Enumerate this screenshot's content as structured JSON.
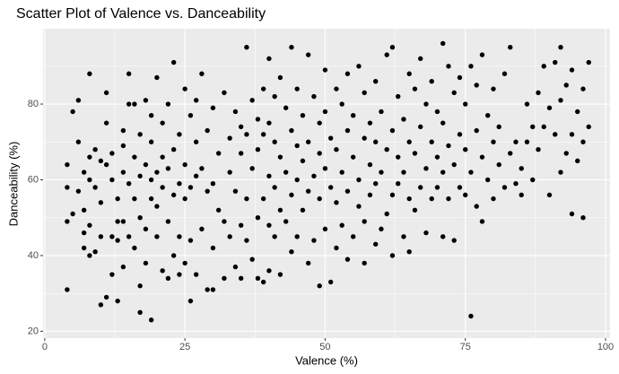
{
  "chart_data": {
    "type": "scatter",
    "title": "Scatter Plot of Valence vs. Danceability",
    "x_label": "Valence (%)",
    "y_label": "Danceability (%)",
    "xlim": [
      -0.3,
      100.8
    ],
    "ylim": [
      18.2,
      99.9
    ],
    "xticks": [
      0,
      25,
      50,
      75,
      100
    ],
    "yticks": [
      20,
      40,
      60,
      80
    ],
    "x_minor": [
      12.5,
      37.5,
      62.5,
      87.5
    ],
    "y_minor": [
      30,
      50,
      70,
      90
    ],
    "grid": true,
    "color": "#000000",
    "x": [
      4,
      4,
      4,
      4,
      5,
      5,
      6,
      6,
      6,
      7,
      7,
      7,
      7,
      8,
      8,
      8,
      8,
      8,
      9,
      9,
      9,
      10,
      10,
      10,
      10,
      11,
      11,
      11,
      11,
      12,
      12,
      12,
      12,
      13,
      13,
      13,
      13,
      14,
      14,
      14,
      14,
      14,
      15,
      15,
      15,
      15,
      16,
      16,
      16,
      16,
      17,
      17,
      17,
      17,
      17,
      18,
      18,
      18,
      18,
      19,
      19,
      19,
      19,
      19,
      20,
      20,
      20,
      20,
      21,
      21,
      21,
      21,
      22,
      22,
      22,
      22,
      23,
      23,
      23,
      23,
      24,
      24,
      24,
      24,
      25,
      25,
      25,
      25,
      26,
      26,
      26,
      26,
      27,
      27,
      27,
      27,
      28,
      28,
      28,
      29,
      29,
      29,
      30,
      30,
      30,
      30,
      31,
      31,
      32,
      32,
      32,
      33,
      33,
      33,
      34,
      34,
      34,
      35,
      35,
      35,
      35,
      36,
      36,
      36,
      36,
      37,
      37,
      37,
      38,
      38,
      38,
      38,
      39,
      39,
      39,
      39,
      40,
      40,
      40,
      40,
      40,
      41,
      41,
      41,
      41,
      42,
      42,
      42,
      42,
      43,
      43,
      43,
      44,
      44,
      44,
      44,
      45,
      45,
      45,
      45,
      46,
      46,
      46,
      47,
      47,
      47,
      47,
      48,
      48,
      48,
      49,
      49,
      49,
      49,
      50,
      50,
      50,
      50,
      51,
      51,
      51,
      52,
      52,
      52,
      52,
      53,
      53,
      53,
      54,
      54,
      54,
      54,
      55,
      55,
      55,
      56,
      56,
      56,
      57,
      57,
      57,
      57,
      58,
      58,
      58,
      59,
      59,
      59,
      59,
      60,
      60,
      60,
      61,
      61,
      61,
      62,
      62,
      62,
      62,
      63,
      63,
      63,
      64,
      64,
      64,
      65,
      65,
      65,
      65,
      66,
      66,
      66,
      67,
      67,
      67,
      68,
      68,
      68,
      69,
      69,
      69,
      70,
      70,
      70,
      71,
      71,
      71,
      71,
      72,
      72,
      72,
      73,
      73,
      73,
      74,
      74,
      74,
      75,
      75,
      75,
      76,
      76,
      76,
      77,
      77,
      77,
      78,
      78,
      78,
      79,
      79,
      80,
      80,
      80,
      81,
      81,
      82,
      82,
      83,
      83,
      84,
      84,
      85,
      85,
      86,
      86,
      87,
      87,
      88,
      88,
      89,
      89,
      90,
      90,
      91,
      91,
      92,
      92,
      92,
      93,
      93,
      94,
      94,
      94,
      95,
      95,
      96,
      96,
      96,
      97,
      97
    ],
    "values": [
      31,
      49,
      58,
      64,
      51,
      78,
      57,
      70,
      81,
      42,
      46,
      52,
      62,
      40,
      48,
      60,
      66,
      88,
      41,
      58,
      68,
      27,
      45,
      54,
      65,
      29,
      64,
      75,
      83,
      35,
      45,
      60,
      67,
      28,
      44,
      49,
      55,
      37,
      49,
      62,
      69,
      73,
      45,
      59,
      80,
      88,
      42,
      55,
      66,
      80,
      25,
      32,
      50,
      61,
      72,
      38,
      47,
      64,
      81,
      23,
      55,
      60,
      70,
      77,
      45,
      53,
      62,
      87,
      36,
      58,
      66,
      75,
      34,
      49,
      63,
      80,
      40,
      56,
      68,
      91,
      35,
      45,
      59,
      72,
      38,
      55,
      64,
      84,
      28,
      44,
      58,
      77,
      35,
      61,
      70,
      81,
      47,
      63,
      88,
      31,
      57,
      73,
      31,
      42,
      59,
      79,
      52,
      67,
      34,
      49,
      83,
      45,
      62,
      71,
      37,
      57,
      78,
      34,
      48,
      67,
      74,
      44,
      55,
      72,
      95,
      39,
      63,
      81,
      34,
      50,
      68,
      76,
      33,
      55,
      72,
      84,
      36,
      48,
      61,
      75,
      92,
      45,
      58,
      70,
      82,
      35,
      52,
      66,
      87,
      49,
      62,
      79,
      41,
      56,
      73,
      95,
      45,
      60,
      69,
      84,
      52,
      65,
      77,
      38,
      57,
      70,
      93,
      44,
      61,
      82,
      32,
      55,
      67,
      75,
      47,
      63,
      78,
      89,
      33,
      58,
      71,
      42,
      54,
      68,
      84,
      48,
      62,
      80,
      39,
      57,
      73,
      88,
      45,
      66,
      77,
      53,
      60,
      90,
      38,
      49,
      71,
      83,
      56,
      64,
      75,
      43,
      59,
      70,
      86,
      47,
      62,
      78,
      51,
      68,
      93,
      40,
      56,
      73,
      95,
      59,
      66,
      82,
      45,
      62,
      76,
      41,
      55,
      70,
      88,
      52,
      67,
      84,
      58,
      74,
      92,
      46,
      63,
      80,
      55,
      70,
      86,
      58,
      66,
      78,
      45,
      62,
      75,
      96,
      55,
      69,
      90,
      44,
      64,
      83,
      58,
      72,
      87,
      56,
      68,
      80,
      24,
      62,
      90,
      53,
      73,
      85,
      49,
      66,
      93,
      60,
      77,
      55,
      70,
      84,
      64,
      74,
      58,
      88,
      67,
      95,
      59,
      70,
      56,
      63,
      70,
      80,
      60,
      74,
      68,
      83,
      74,
      90,
      56,
      79,
      72,
      91,
      62,
      81,
      95,
      67,
      85,
      51,
      72,
      89,
      65,
      78,
      50,
      70,
      84,
      74,
      91
    ]
  }
}
